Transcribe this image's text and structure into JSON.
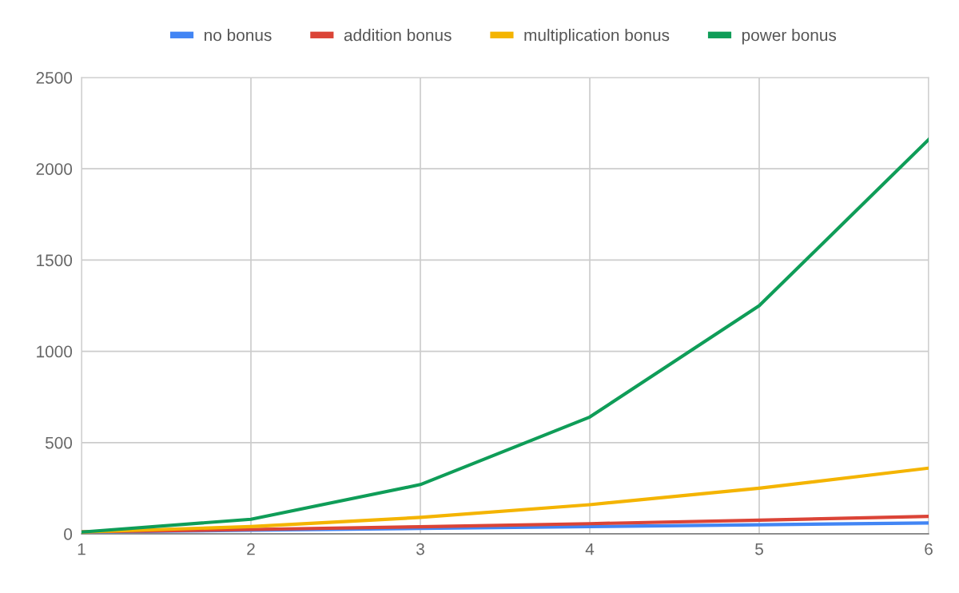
{
  "chart_data": {
    "type": "line",
    "x": [
      1,
      2,
      3,
      4,
      5,
      6
    ],
    "series": [
      {
        "name": "no bonus",
        "color": "#4285f4",
        "values": [
          10,
          20,
          30,
          40,
          50,
          60
        ]
      },
      {
        "name": "addition bonus",
        "color": "#db4437",
        "values": [
          11,
          24,
          39,
          56,
          75,
          96
        ]
      },
      {
        "name": "multiplication bonus",
        "color": "#f4b400",
        "values": [
          10,
          40,
          90,
          160,
          250,
          360
        ]
      },
      {
        "name": "power bonus",
        "color": "#0f9d58",
        "values": [
          10,
          80,
          270,
          640,
          1250,
          2160
        ]
      }
    ],
    "xlim": [
      1,
      6
    ],
    "xticks": [
      1,
      2,
      3,
      4,
      5,
      6
    ],
    "ylim": [
      0,
      2500
    ],
    "yticks": [
      0,
      500,
      1000,
      1500,
      2000,
      2500
    ],
    "grid": true,
    "legend": "top",
    "marker": "none",
    "line_style": "solid"
  }
}
